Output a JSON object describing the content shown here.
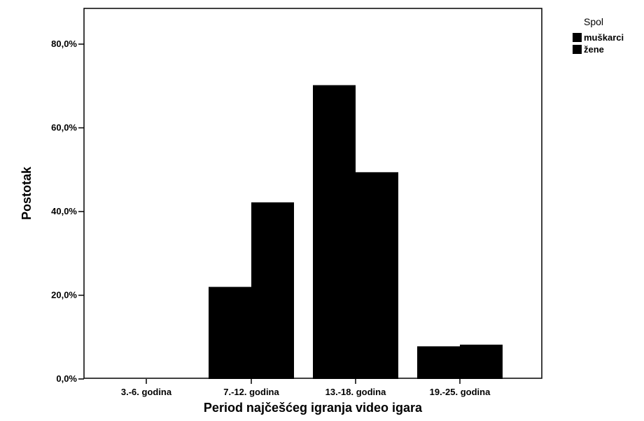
{
  "chart_data": {
    "type": "bar",
    "title": "",
    "xlabel": "Period najčešćeg igranja video igara",
    "ylabel": "Postotak",
    "categories": [
      "3.-6. godina",
      "7.-12. godina",
      "13.-18. godina",
      "19.-25. godina"
    ],
    "series": [
      {
        "name": "muškarci",
        "values": [
          0.0,
          22.0,
          70.2,
          7.8
        ]
      },
      {
        "name": "žene",
        "values": [
          0.0,
          42.2,
          49.4,
          8.2
        ]
      }
    ],
    "ylim": [
      0,
      80
    ],
    "yticks": [
      0,
      20,
      40,
      60,
      80
    ],
    "ytick_labels": [
      "0,0%",
      "20,0%",
      "40,0%",
      "60,0%",
      "80,0%"
    ],
    "grid": false,
    "legend": {
      "title": "Spol",
      "placement": "top-right"
    },
    "colors": {
      "bars": "#000000",
      "axis": "#000000",
      "background": "#ffffff"
    }
  }
}
